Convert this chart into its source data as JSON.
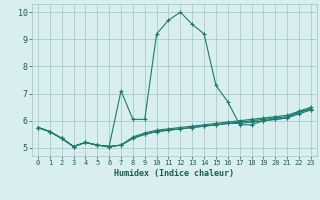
{
  "xlabel": "Humidex (Indice chaleur)",
  "bg_color": "#d9efef",
  "grid_color": "#aacccc",
  "line_color": "#1a7a6e",
  "xlim": [
    -0.5,
    23.5
  ],
  "ylim": [
    4.7,
    10.3
  ],
  "x": [
    0,
    1,
    2,
    3,
    4,
    5,
    6,
    7,
    8,
    9,
    10,
    11,
    12,
    13,
    14,
    15,
    16,
    17,
    18,
    19,
    20,
    21,
    22,
    23
  ],
  "line1": [
    5.75,
    5.6,
    5.35,
    5.05,
    5.2,
    5.1,
    5.05,
    7.1,
    6.05,
    6.05,
    9.2,
    9.7,
    10.0,
    9.55,
    9.2,
    7.3,
    6.7,
    5.85,
    5.85,
    6.0,
    6.05,
    6.1,
    6.35,
    6.4
  ],
  "line2": [
    5.75,
    5.6,
    5.35,
    5.05,
    5.2,
    5.1,
    5.05,
    5.1,
    5.35,
    5.5,
    5.6,
    5.65,
    5.7,
    5.75,
    5.8,
    5.85,
    5.9,
    5.9,
    5.95,
    6.0,
    6.05,
    6.1,
    6.25,
    6.4
  ],
  "line3": [
    5.75,
    5.6,
    5.35,
    5.05,
    5.2,
    5.1,
    5.05,
    5.1,
    5.35,
    5.5,
    5.6,
    5.65,
    5.7,
    5.75,
    5.8,
    5.85,
    5.9,
    5.95,
    6.0,
    6.05,
    6.1,
    6.15,
    6.3,
    6.45
  ],
  "line4": [
    5.75,
    5.6,
    5.35,
    5.05,
    5.2,
    5.1,
    5.05,
    5.1,
    5.4,
    5.55,
    5.65,
    5.7,
    5.75,
    5.8,
    5.85,
    5.9,
    5.95,
    6.0,
    6.05,
    6.1,
    6.15,
    6.2,
    6.35,
    6.5
  ],
  "xticks": [
    0,
    1,
    2,
    3,
    4,
    5,
    6,
    7,
    8,
    9,
    10,
    11,
    12,
    13,
    14,
    15,
    16,
    17,
    18,
    19,
    20,
    21,
    22,
    23
  ],
  "yticks": [
    5,
    6,
    7,
    8,
    9,
    10
  ]
}
